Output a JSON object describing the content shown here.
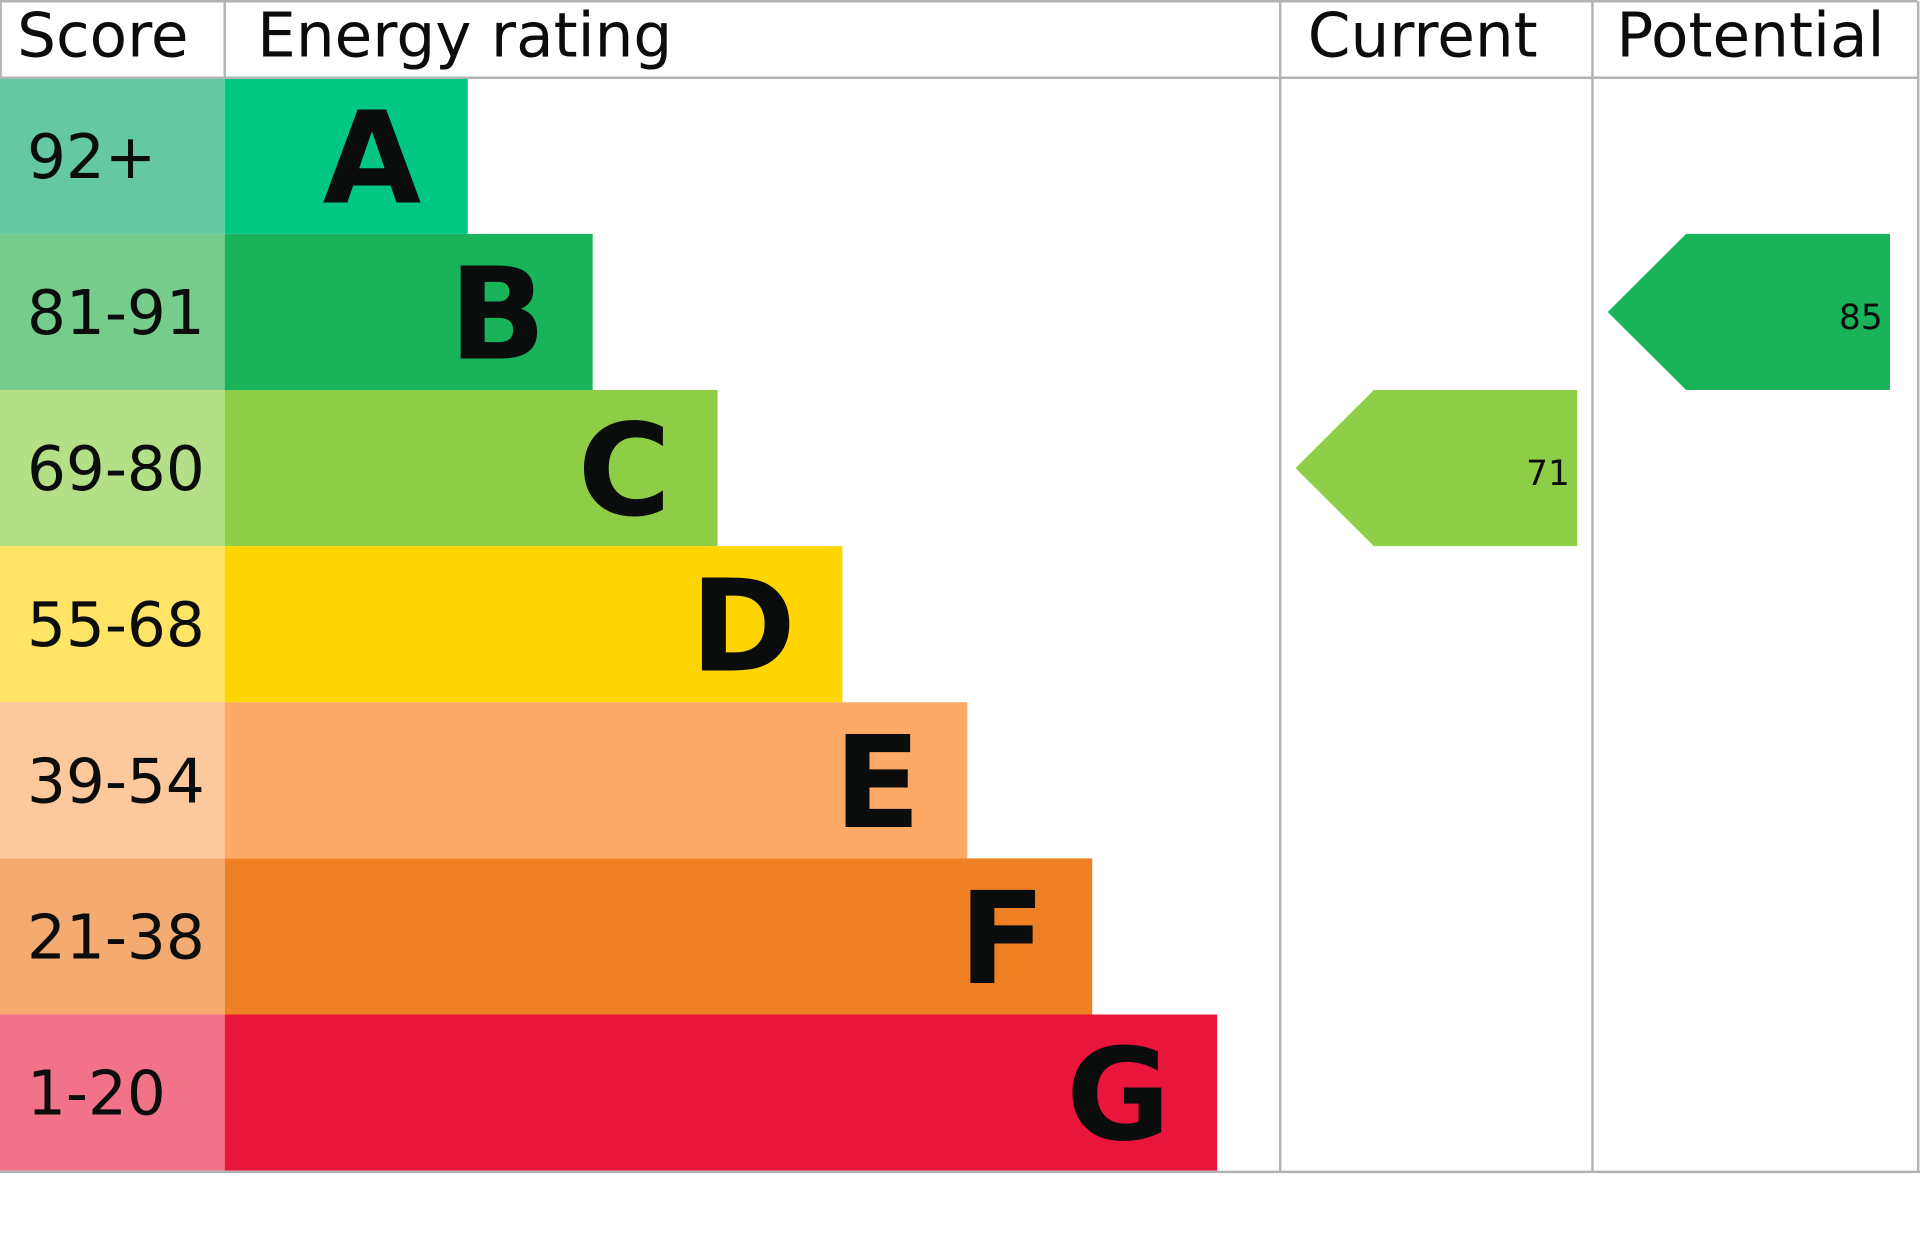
{
  "chart_data": {
    "type": "bar",
    "headers": {
      "score": "Score",
      "rating": "Energy rating",
      "current": "Current",
      "potential": "Potential"
    },
    "bands": [
      {
        "letter": "A",
        "range": "92+",
        "color": "#00c781",
        "score_color": "#64c8a3"
      },
      {
        "letter": "B",
        "range": "81-91",
        "color": "#19b459",
        "score_color": "#76cc8b"
      },
      {
        "letter": "C",
        "range": "69-80",
        "color": "#8dce46",
        "score_color": "#b3df87"
      },
      {
        "letter": "D",
        "range": "55-68",
        "color": "#ffd500",
        "score_color": "#ffe466"
      },
      {
        "letter": "E",
        "range": "39-54",
        "color": "#fcaa65",
        "score_color": "#fdc89c"
      },
      {
        "letter": "F",
        "range": "21-38",
        "color": "#ef8023",
        "score_color": "#f4ab71"
      },
      {
        "letter": "G",
        "range": "1-20",
        "color": "#e9153b",
        "score_color": "#f27289"
      }
    ],
    "current": {
      "value": "71",
      "band": "C",
      "color": "#8dce46"
    },
    "potential": {
      "value": "85",
      "band": "B",
      "color": "#19b459"
    },
    "grid_color": "#b1b4b6"
  }
}
